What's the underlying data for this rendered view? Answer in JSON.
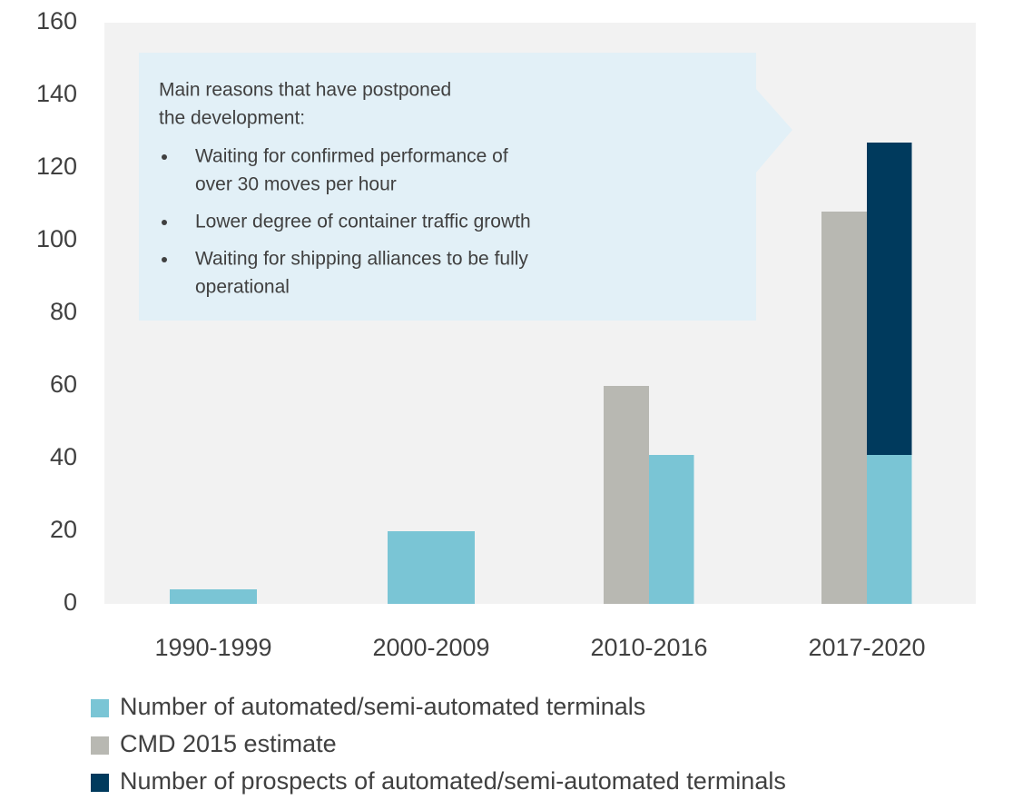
{
  "chart_data": {
    "type": "bar",
    "categories": [
      "1990-1999",
      "2000-2009",
      "2010-2016",
      "2017-2020"
    ],
    "series": [
      {
        "name": "Number of automated/semi-automated terminals",
        "color": "#7ac5d5",
        "values": [
          4,
          20,
          41,
          41
        ]
      },
      {
        "name": "CMD 2015 estimate",
        "color": "#b8b8b2",
        "values": [
          null,
          null,
          60,
          108
        ]
      },
      {
        "name": "Number of prospects of automated/semi-automated terminals",
        "color": "#003a5d",
        "values": [
          null,
          null,
          null,
          86
        ]
      }
    ],
    "ylim": [
      0,
      160
    ],
    "yticks": [
      0,
      20,
      40,
      60,
      80,
      100,
      120,
      140,
      160
    ],
    "annotation": {
      "heading": [
        "Main reasons that  have postponed",
        "the development:"
      ],
      "bullets": [
        [
          "Waiting for confirmed performance of",
          "over 30 moves per hour"
        ],
        [
          "Lower degree of container traffic growth"
        ],
        [
          "Waiting for shipping alliances to be fully",
          "operational"
        ]
      ]
    }
  }
}
